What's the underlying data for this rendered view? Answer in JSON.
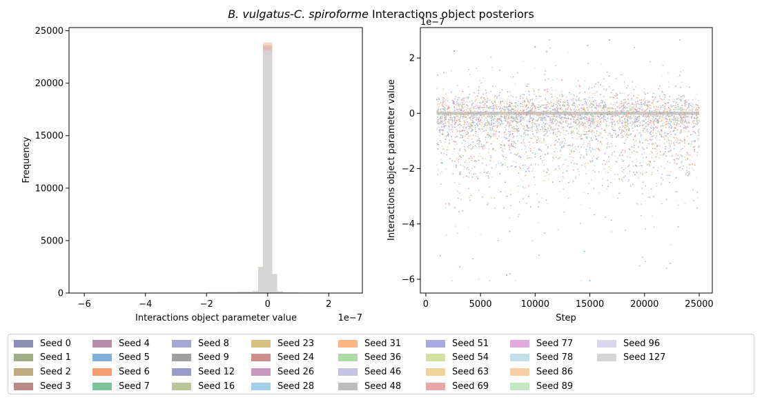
{
  "figure": {
    "title_italic": "B. vulgatus-C. spiroforme",
    "title_rest": " Interactions object posteriors"
  },
  "chart_data": [
    {
      "type": "histogram",
      "xlabel": "Interactions object parameter value",
      "ylabel": "Frequency",
      "xlim": [
        -6.5e-07,
        3.1e-07
      ],
      "ylim": [
        0,
        25300
      ],
      "x_ticks": [
        -6e-07,
        -4e-07,
        -2e-07,
        0,
        2e-07
      ],
      "x_tick_labels": [
        "−6",
        "−4",
        "−2",
        "0",
        "2"
      ],
      "y_ticks": [
        0,
        5000,
        10000,
        15000,
        20000,
        25000
      ],
      "y_tick_labels": [
        "0",
        "5000",
        "10000",
        "15000",
        "20000",
        "25000"
      ],
      "x_offset_label": "1e−7",
      "peak": {
        "center": 0,
        "max_frequency": 23900
      },
      "distribution": {
        "bin_edges_1e7": [
          -6,
          -3,
          -2,
          -1,
          -0.5,
          -0.3,
          -0.15,
          0.15,
          0.3,
          0.5,
          1,
          2,
          3
        ],
        "frequency": [
          5,
          30,
          80,
          120,
          200,
          2500,
          23900,
          1800,
          150,
          60,
          10,
          3
        ]
      },
      "grid": false
    },
    {
      "type": "scatter",
      "xlabel": "Step",
      "ylabel": "Interactions object parameter value",
      "xlim": [
        -500,
        26200
      ],
      "ylim": [
        -6.5e-07,
        3.1e-07
      ],
      "x_ticks": [
        0,
        5000,
        10000,
        15000,
        20000,
        25000
      ],
      "x_tick_labels": [
        "0",
        "5000",
        "10000",
        "15000",
        "20000",
        "25000"
      ],
      "y_ticks": [
        -6e-07,
        -4e-07,
        -2e-07,
        0,
        2e-07
      ],
      "y_tick_labels": [
        "−6",
        "−4",
        "−2",
        "0",
        "2"
      ],
      "y_offset_label": "1e−7",
      "x_range_of_points": [
        1000,
        25000
      ],
      "y_range_of_points": [
        -6.05e-07,
        2.65e-07
      ],
      "grid": false
    }
  ],
  "legend": {
    "placement": "bottom",
    "entries": [
      {
        "label": "Seed 0",
        "color": "#8c8fb4"
      },
      {
        "label": "Seed 1",
        "color": "#a0ad87"
      },
      {
        "label": "Seed 2",
        "color": "#bfaa82"
      },
      {
        "label": "Seed 3",
        "color": "#b98a88"
      },
      {
        "label": "Seed 4",
        "color": "#b58ca9"
      },
      {
        "label": "Seed 5",
        "color": "#81b0db"
      },
      {
        "label": "Seed 6",
        "color": "#f29e6f"
      },
      {
        "label": "Seed 7",
        "color": "#7cc49a"
      },
      {
        "label": "Seed 8",
        "color": "#a7a5d6"
      },
      {
        "label": "Seed 9",
        "color": "#a0a0a0"
      },
      {
        "label": "Seed 12",
        "color": "#9a9acb"
      },
      {
        "label": "Seed 16",
        "color": "#b8c596"
      },
      {
        "label": "Seed 23",
        "color": "#d7c081"
      },
      {
        "label": "Seed 24",
        "color": "#cf8f8e"
      },
      {
        "label": "Seed 26",
        "color": "#c897c0"
      },
      {
        "label": "Seed 28",
        "color": "#a3cfe8"
      },
      {
        "label": "Seed 31",
        "color": "#f7b886"
      },
      {
        "label": "Seed 36",
        "color": "#addba6"
      },
      {
        "label": "Seed 46",
        "color": "#c6c2e1"
      },
      {
        "label": "Seed 48",
        "color": "#bdbdbd"
      },
      {
        "label": "Seed 51",
        "color": "#a7aae1"
      },
      {
        "label": "Seed 54",
        "color": "#d3e2a1"
      },
      {
        "label": "Seed 63",
        "color": "#efd49a"
      },
      {
        "label": "Seed 69",
        "color": "#e9a5a8"
      },
      {
        "label": "Seed 77",
        "color": "#e3a9dc"
      },
      {
        "label": "Seed 78",
        "color": "#c0dfea"
      },
      {
        "label": "Seed 86",
        "color": "#fbcda4"
      },
      {
        "label": "Seed 89",
        "color": "#c3e7c2"
      },
      {
        "label": "Seed 96",
        "color": "#d8d7ed"
      },
      {
        "label": "Seed 127",
        "color": "#d5d5d5"
      }
    ]
  }
}
